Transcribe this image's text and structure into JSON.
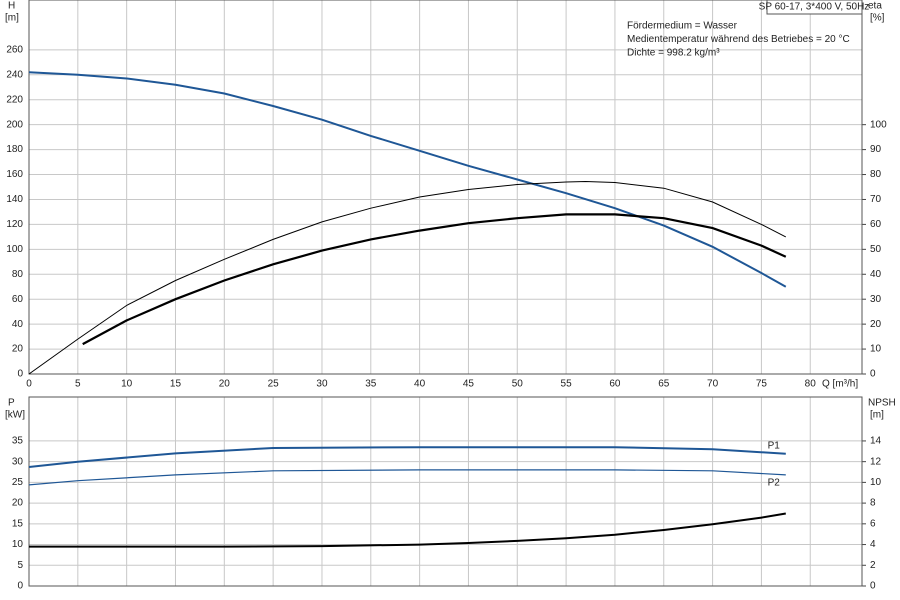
{
  "chart_data": [
    {
      "type": "line",
      "ylabel": "H",
      "yunit": "[m]",
      "y2label": "eta",
      "y2unit": "[%]",
      "xlabel": "Q [m³/h]",
      "title": "SP 60-17, 3*400 V, 50Hz",
      "annotations": [
        "Fördermedium = Wasser",
        "Medientemperatur während des Betriebes = 20 °C",
        "Dichte = 998.2 kg/m³"
      ],
      "xlim": [
        0,
        85.3
      ],
      "xticks": [
        0,
        5,
        10,
        15,
        20,
        25,
        30,
        35,
        40,
        45,
        50,
        55,
        60,
        65,
        70,
        75,
        80
      ],
      "ylim": [
        0,
        300
      ],
      "yticks": [
        0,
        20,
        40,
        60,
        80,
        100,
        120,
        140,
        160,
        180,
        200,
        220,
        240,
        260
      ],
      "y2lim": [
        0,
        150
      ],
      "y2ticks": [
        0,
        10,
        20,
        30,
        40,
        50,
        60,
        70,
        80,
        90,
        100
      ],
      "grid": true,
      "series": [
        {
          "color": "#1f5796",
          "width": 2,
          "axis": "y",
          "x": [
            0,
            5,
            10,
            15,
            20,
            25,
            30,
            35,
            40,
            45,
            50,
            55,
            60,
            65,
            70,
            75,
            77.5
          ],
          "values": [
            242,
            240,
            237,
            232,
            225,
            215,
            204,
            191,
            179,
            167,
            156,
            145,
            133,
            119,
            102,
            81,
            70
          ]
        },
        {
          "color": "#000000",
          "width": 1,
          "axis": "y2",
          "x": [
            0,
            5,
            10,
            15,
            20,
            25,
            30,
            35,
            40,
            45,
            50,
            55,
            57,
            60,
            65,
            70,
            75,
            77.5
          ],
          "values": [
            0,
            14,
            27.5,
            37.5,
            46,
            54,
            61,
            66.5,
            71,
            74,
            76,
            77,
            77.2,
            76.8,
            74.5,
            69,
            60,
            55
          ]
        },
        {
          "color": "#000000",
          "width": 2.2,
          "axis": "y2",
          "x": [
            5.5,
            10,
            15,
            20,
            25,
            30,
            35,
            40,
            45,
            50,
            55,
            60,
            65,
            70,
            75,
            77.5
          ],
          "values": [
            12,
            21.5,
            30,
            37.5,
            44,
            49.5,
            54,
            57.5,
            60.5,
            62.5,
            64,
            64,
            62.5,
            58.5,
            51.5,
            47
          ]
        }
      ]
    },
    {
      "type": "line",
      "ylabel": "P",
      "yunit": "[kW]",
      "y2label": "NPSH",
      "y2unit": "[m]",
      "xlim": [
        0,
        85.3
      ],
      "xticks": [
        0,
        5,
        10,
        15,
        20,
        25,
        30,
        35,
        40,
        45,
        50,
        55,
        60,
        65,
        70,
        75,
        80
      ],
      "ylim": [
        0,
        45.6
      ],
      "yticks": [
        0,
        5,
        10,
        15,
        20,
        25,
        30,
        35
      ],
      "y2lim": [
        0,
        18.24
      ],
      "y2ticks": [
        0,
        2,
        4,
        6,
        8,
        10,
        12,
        14
      ],
      "grid": true,
      "series": [
        {
          "name": "P1",
          "color": "#1f5796",
          "width": 2,
          "axis": "y",
          "x": [
            0,
            5,
            15,
            25,
            40,
            60,
            70,
            77.5
          ],
          "values": [
            28.7,
            30,
            32,
            33.3,
            33.5,
            33.5,
            33,
            31.9
          ]
        },
        {
          "name": "P2",
          "color": "#1f5796",
          "width": 1.2,
          "axis": "y",
          "x": [
            0,
            5,
            15,
            25,
            40,
            60,
            70,
            77.5
          ],
          "values": [
            24.4,
            25.4,
            26.8,
            27.8,
            28,
            28,
            27.8,
            26.8
          ]
        },
        {
          "color": "#000000",
          "width": 2,
          "axis": "y2",
          "x": [
            0,
            10,
            20,
            30,
            40,
            45,
            50,
            55,
            60,
            65,
            70,
            75,
            77.5
          ],
          "values": [
            3.8,
            3.8,
            3.8,
            3.85,
            4.0,
            4.15,
            4.35,
            4.6,
            4.95,
            5.4,
            5.95,
            6.6,
            7.0
          ]
        }
      ]
    }
  ]
}
